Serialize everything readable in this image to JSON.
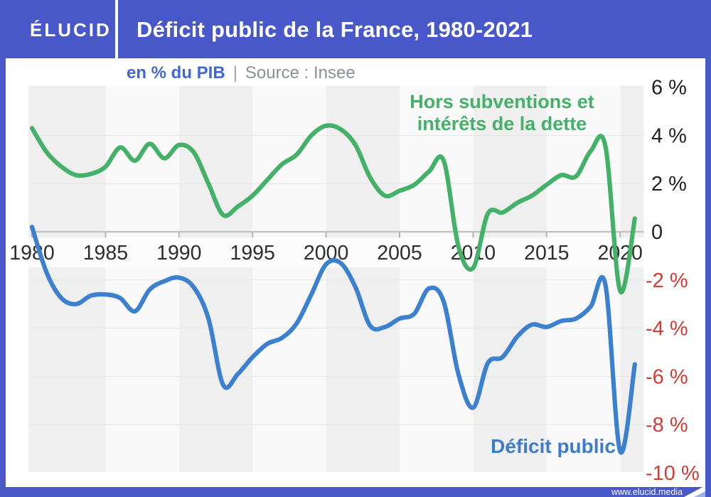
{
  "header": {
    "logo": "ÉLUCID",
    "title": "Déficit public de la France, 1980-2021"
  },
  "subtitle": {
    "unit": "en % du PIB",
    "separator": "|",
    "source": "Source : Insee"
  },
  "footer": {
    "url": "www.elucid.media"
  },
  "colors": {
    "frame_blue": "#4858c8",
    "line_blue": "#3c80d0",
    "line_green": "#44b168",
    "negative_red": "#d63a31",
    "tick_black": "#2e2e2e",
    "subtitle_blue": "#3e68d8",
    "subtitle_gray": "#8c9097",
    "stripe_dark": "#efefef",
    "stripe_light": "#f9f9f9",
    "label_band": "#fcfcfc",
    "gridline": "#e6e6e6",
    "zero_axis": "#c0c0c0"
  },
  "chart_data": {
    "type": "line",
    "x": [
      1980,
      1981,
      1982,
      1983,
      1984,
      1985,
      1986,
      1987,
      1988,
      1989,
      1990,
      1991,
      1992,
      1993,
      1994,
      1995,
      1996,
      1997,
      1998,
      1999,
      2000,
      2001,
      2002,
      2003,
      2004,
      2005,
      2006,
      2007,
      2008,
      2009,
      2010,
      2011,
      2012,
      2013,
      2014,
      2015,
      2016,
      2017,
      2018,
      2019,
      2020,
      2021
    ],
    "series": [
      {
        "name": "Hors subventions et intérêts de la dette",
        "color": "#44b168",
        "values": [
          4.3,
          3.3,
          2.7,
          2.35,
          2.4,
          2.7,
          3.5,
          2.95,
          3.65,
          3.05,
          3.6,
          3.3,
          2.0,
          0.7,
          1.05,
          1.5,
          2.15,
          2.8,
          3.2,
          4.0,
          4.4,
          4.25,
          3.6,
          2.25,
          1.5,
          1.7,
          1.95,
          2.5,
          2.95,
          -0.6,
          -1.5,
          0.75,
          0.8,
          1.2,
          1.5,
          1.95,
          2.35,
          2.3,
          3.35,
          3.55,
          -2.45,
          0.55
        ]
      },
      {
        "name": "Déficit public",
        "color": "#3c80d0",
        "values": [
          0.2,
          -1.7,
          -2.75,
          -3.0,
          -2.65,
          -2.6,
          -2.75,
          -3.3,
          -2.4,
          -2.05,
          -1.9,
          -2.3,
          -3.6,
          -6.35,
          -5.9,
          -5.2,
          -4.65,
          -4.4,
          -3.8,
          -2.6,
          -1.35,
          -1.3,
          -2.3,
          -3.9,
          -3.95,
          -3.6,
          -3.4,
          -2.35,
          -2.9,
          -5.9,
          -7.3,
          -5.45,
          -5.2,
          -4.35,
          -3.85,
          -3.95,
          -3.7,
          -3.6,
          -3.1,
          -2.2,
          -9.1,
          -5.5
        ]
      }
    ],
    "xticks": [
      1980,
      1985,
      1990,
      1995,
      2000,
      2005,
      2010,
      2015,
      2020
    ],
    "ytick_labels": [
      "6 %",
      "4 %",
      "2 %",
      "0",
      "-2 %",
      "-4 %",
      "-6 %",
      "-8 %",
      "-10 %"
    ],
    "ytick_values": [
      6,
      4,
      2,
      0,
      -2,
      -4,
      -6,
      -8,
      -10
    ],
    "ylim": [
      -10,
      6.1
    ],
    "annotations": [
      {
        "lines": [
          "Hors subventions et",
          "intérêts de la dette"
        ],
        "color": "#44b168"
      },
      {
        "lines": [
          "Déficit public"
        ],
        "color": "#3d7cc9"
      }
    ]
  }
}
